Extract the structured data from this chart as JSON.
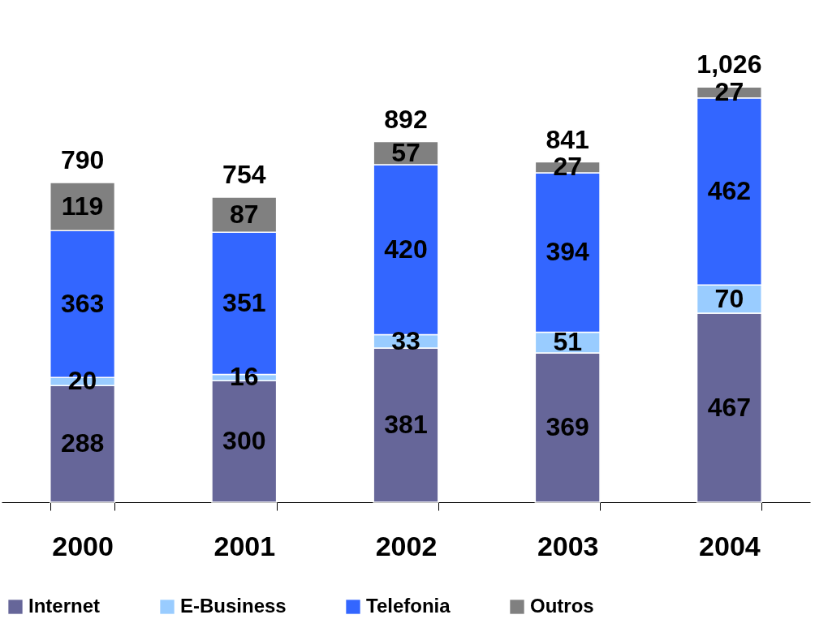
{
  "chart_data": {
    "type": "bar",
    "stacked": true,
    "data_labels": true,
    "legend": "bottom",
    "categories": [
      "2000",
      "2001",
      "2002",
      "2003",
      "2004"
    ],
    "series": [
      {
        "name": "Internet",
        "color": "#666699",
        "values": [
          288,
          300,
          381,
          369,
          467
        ]
      },
      {
        "name": "E-Business",
        "color": "#99ccff",
        "values": [
          20,
          16,
          33,
          51,
          70
        ]
      },
      {
        "name": "Telefonia",
        "color": "#3366ff",
        "values": [
          363,
          351,
          420,
          394,
          462
        ]
      },
      {
        "name": "Outros",
        "color": "#808080",
        "values": [
          119,
          87,
          57,
          27,
          27
        ]
      }
    ],
    "totals": [
      "790",
      "754",
      "892",
      "841",
      "1,026"
    ]
  }
}
